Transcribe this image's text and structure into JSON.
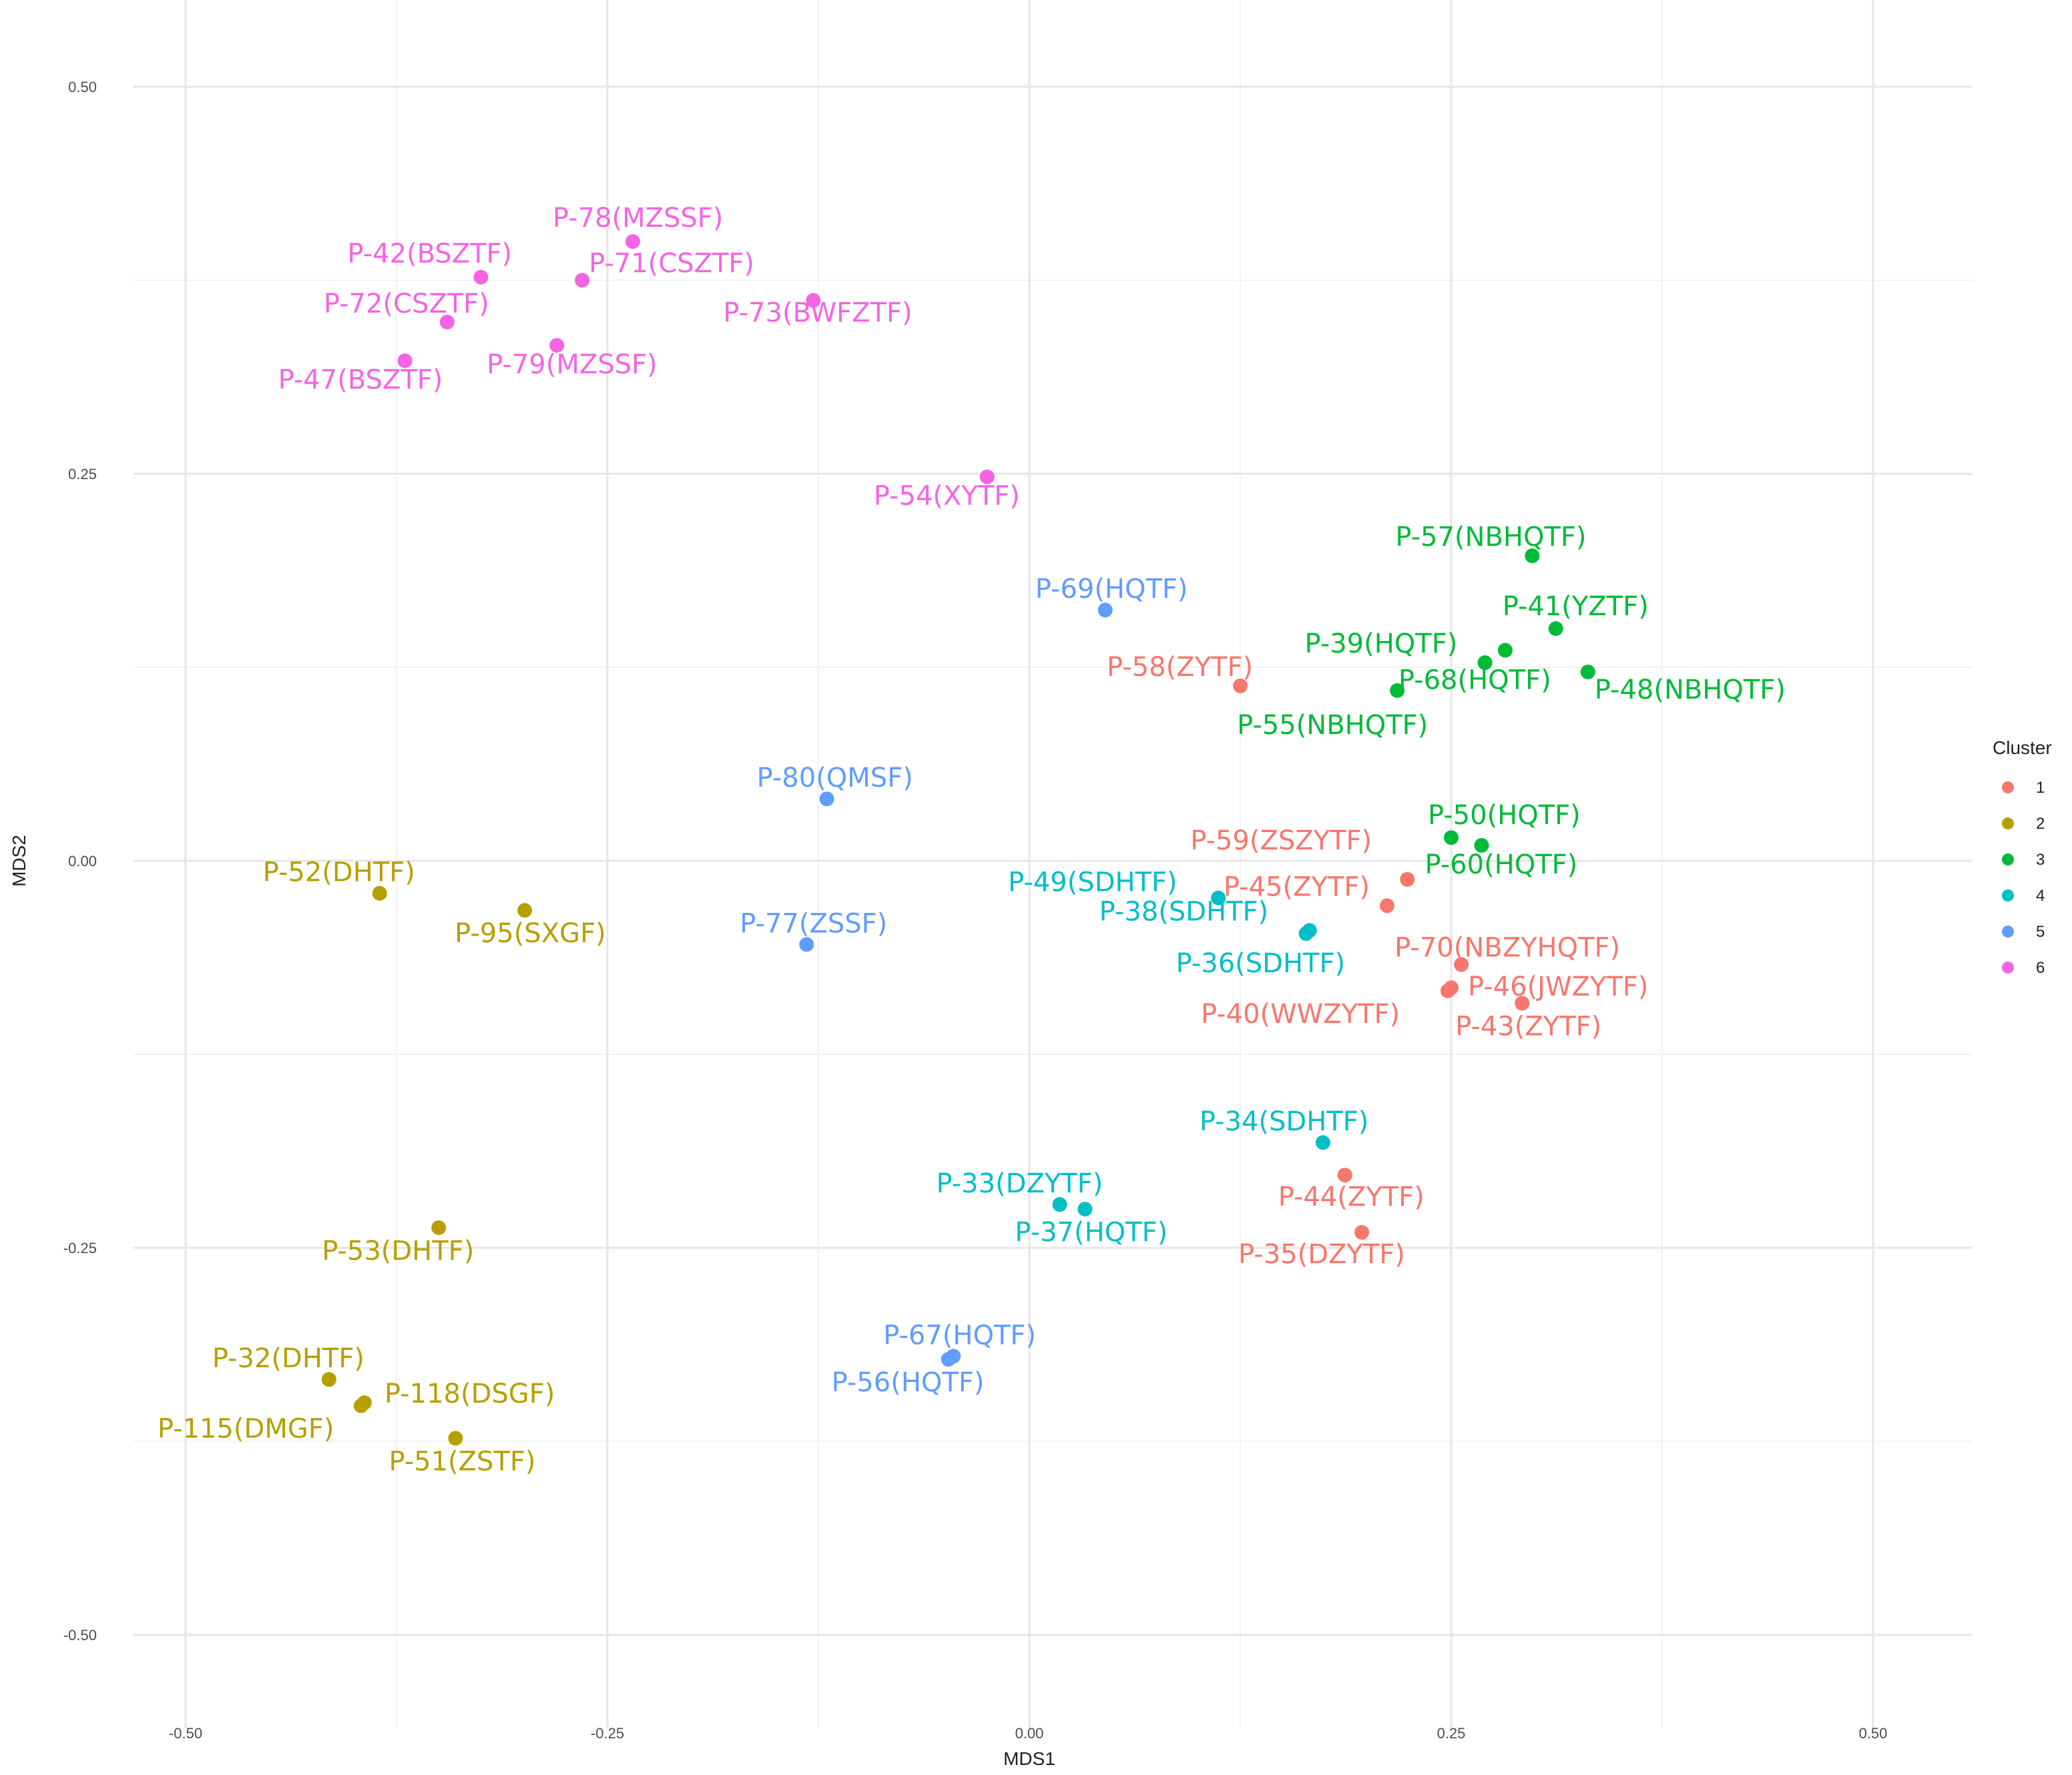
{
  "chart_data": {
    "type": "scatter",
    "xlabel": "MDS1",
    "ylabel": "MDS2",
    "xlim": [
      -0.55,
      0.55
    ],
    "ylim": [
      -0.55,
      0.55
    ],
    "grid": true,
    "x_ticks": [
      "-0.50",
      "-0.25",
      "0.00",
      "0.25",
      "0.50"
    ],
    "y_ticks": [
      "-0.50",
      "-0.25",
      "0.00",
      "0.25",
      "0.50"
    ],
    "legend": {
      "title": "Cluster",
      "placement": "right",
      "items": [
        {
          "label": "1",
          "color": "#F8766D"
        },
        {
          "label": "2",
          "color": "#B79F00"
        },
        {
          "label": "3",
          "color": "#00BA38"
        },
        {
          "label": "4",
          "color": "#00BFC4"
        },
        {
          "label": "5",
          "color": "#619CFF"
        },
        {
          "label": "6",
          "color": "#F564E3"
        }
      ]
    },
    "points": [
      {
        "label": "P-78(MZSSF)",
        "x": -0.235,
        "y": 0.4,
        "cluster": "6"
      },
      {
        "label": "P-42(BSZTF)",
        "x": -0.325,
        "y": 0.377,
        "cluster": "6"
      },
      {
        "label": "P-71(CSZTF)",
        "x": -0.265,
        "y": 0.375,
        "cluster": "6"
      },
      {
        "label": "P-72(CSZTF)",
        "x": -0.345,
        "y": 0.348,
        "cluster": "6"
      },
      {
        "label": "P-73(BWFZTF)",
        "x": -0.128,
        "y": 0.362,
        "cluster": "6"
      },
      {
        "label": "P-79(MZSSF)",
        "x": -0.28,
        "y": 0.333,
        "cluster": "6"
      },
      {
        "label": "P-47(BSZTF)",
        "x": -0.37,
        "y": 0.323,
        "cluster": "6"
      },
      {
        "label": "P-54(XYTF)",
        "x": -0.025,
        "y": 0.248,
        "cluster": "6"
      },
      {
        "label": "P-57(NBHQTF)",
        "x": 0.298,
        "y": 0.197,
        "cluster": "3"
      },
      {
        "label": "P-41(YZTF)",
        "x": 0.312,
        "y": 0.15,
        "cluster": "3"
      },
      {
        "label": "P-39(HQTF)",
        "x": 0.27,
        "y": 0.128,
        "cluster": "3"
      },
      {
        "label": "P-68(HQTF)",
        "x": 0.282,
        "y": 0.136,
        "cluster": "3"
      },
      {
        "label": "P-48(NBHQTF)",
        "x": 0.331,
        "y": 0.122,
        "cluster": "3"
      },
      {
        "label": "P-55(NBHQTF)",
        "x": 0.218,
        "y": 0.11,
        "cluster": "3"
      },
      {
        "label": "P-50(HQTF)",
        "x": 0.25,
        "y": 0.015,
        "cluster": "3"
      },
      {
        "label": "P-60(HQTF)",
        "x": 0.268,
        "y": 0.01,
        "cluster": "3"
      },
      {
        "label": "P-69(HQTF)",
        "x": 0.045,
        "y": 0.162,
        "cluster": "5"
      },
      {
        "label": "P-80(QMSF)",
        "x": -0.12,
        "y": 0.04,
        "cluster": "5"
      },
      {
        "label": "P-77(ZSSF)",
        "x": -0.132,
        "y": -0.054,
        "cluster": "5"
      },
      {
        "label": "P-67(HQTF)",
        "x": -0.045,
        "y": -0.32,
        "cluster": "5"
      },
      {
        "label": "P-56(HQTF)",
        "x": -0.048,
        "y": -0.322,
        "cluster": "5"
      },
      {
        "label": "P-58(ZYTF)",
        "x": 0.125,
        "y": 0.113,
        "cluster": "1"
      },
      {
        "label": "P-59(ZSZYTF)",
        "x": 0.224,
        "y": -0.012,
        "cluster": "1"
      },
      {
        "label": "P-45(ZYTF)",
        "x": 0.212,
        "y": -0.029,
        "cluster": "1"
      },
      {
        "label": "P-70(NBZYHQTF)",
        "x": 0.256,
        "y": -0.067,
        "cluster": "1"
      },
      {
        "label": "P-46(JWZYTF)",
        "x": 0.25,
        "y": -0.082,
        "cluster": "1"
      },
      {
        "label": "P-43(ZYTF)",
        "x": 0.292,
        "y": -0.092,
        "cluster": "1"
      },
      {
        "label": "P-40(WWZYTF)",
        "x": 0.248,
        "y": -0.084,
        "cluster": "1"
      },
      {
        "label": "P-44(ZYTF)",
        "x": 0.187,
        "y": -0.203,
        "cluster": "1"
      },
      {
        "label": "P-35(DZYTF)",
        "x": 0.197,
        "y": -0.24,
        "cluster": "1"
      },
      {
        "label": "P-49(SDHTF)",
        "x": 0.112,
        "y": -0.024,
        "cluster": "4"
      },
      {
        "label": "P-38(SDHTF)",
        "x": 0.166,
        "y": -0.045,
        "cluster": "4"
      },
      {
        "label": "P-36(SDHTF)",
        "x": 0.164,
        "y": -0.047,
        "cluster": "4"
      },
      {
        "label": "P-34(SDHTF)",
        "x": 0.174,
        "y": -0.182,
        "cluster": "4"
      },
      {
        "label": "P-33(DZYTF)",
        "x": 0.018,
        "y": -0.222,
        "cluster": "4"
      },
      {
        "label": "P-37(HQTF)",
        "x": 0.033,
        "y": -0.225,
        "cluster": "4"
      },
      {
        "label": "P-52(DHTF)",
        "x": -0.385,
        "y": -0.021,
        "cluster": "2"
      },
      {
        "label": "P-95(SXGF)",
        "x": -0.299,
        "y": -0.032,
        "cluster": "2"
      },
      {
        "label": "P-53(DHTF)",
        "x": -0.35,
        "y": -0.237,
        "cluster": "2"
      },
      {
        "label": "P-32(DHTF)",
        "x": -0.415,
        "y": -0.335,
        "cluster": "2"
      },
      {
        "label": "P-118(DSGF)",
        "x": -0.394,
        "y": -0.35,
        "cluster": "2"
      },
      {
        "label": "P-115(DMGF)",
        "x": -0.396,
        "y": -0.352,
        "cluster": "2"
      },
      {
        "label": "P-51(ZSTF)",
        "x": -0.34,
        "y": -0.373,
        "cluster": "2"
      }
    ]
  }
}
